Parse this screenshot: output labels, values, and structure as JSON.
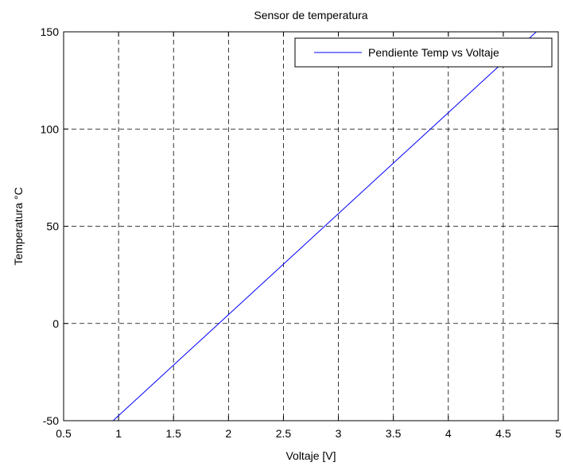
{
  "chart_data": {
    "type": "line",
    "title": "Sensor de temperatura",
    "xlabel": "Voltaje [V]",
    "ylabel": "Temperatura °C",
    "xlim": [
      0.5,
      5
    ],
    "ylim": [
      -50,
      150
    ],
    "xticks": [
      0.5,
      1,
      1.5,
      2,
      2.5,
      3,
      3.5,
      4,
      4.5,
      5
    ],
    "yticks": [
      -50,
      0,
      50,
      100,
      150
    ],
    "xtick_labels": [
      "0.5",
      "1",
      "1.5",
      "2",
      "2.5",
      "3",
      "3.5",
      "4",
      "4.5",
      "5"
    ],
    "ytick_labels": [
      "-50",
      "0",
      "50",
      "100",
      "150"
    ],
    "grid": true,
    "legend_position": "top-right",
    "series": [
      {
        "name": "Pendiente Temp vs Voltaje",
        "color": "#0000ff",
        "x": [
          0.95,
          4.8
        ],
        "y": [
          -50,
          150
        ]
      }
    ]
  }
}
